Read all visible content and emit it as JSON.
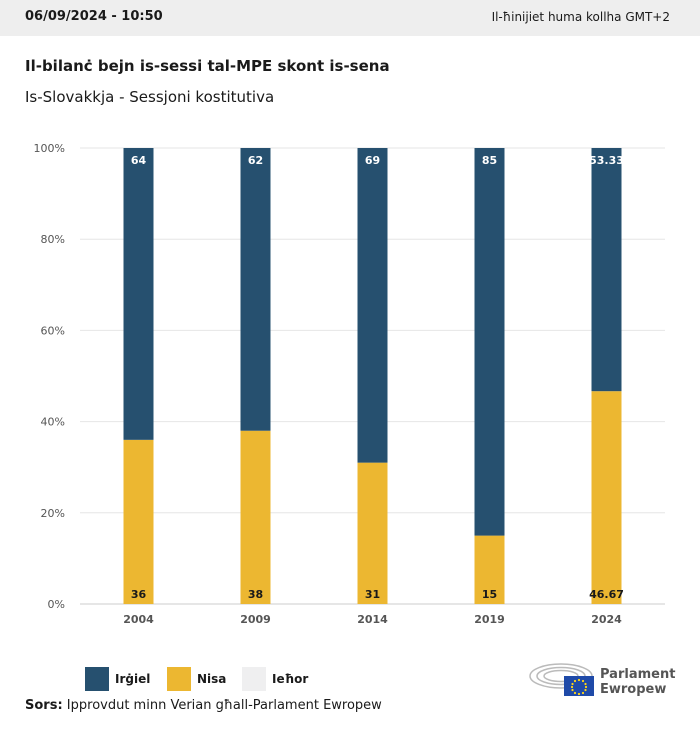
{
  "header": {
    "datetime": "06/09/2024 - 10:50",
    "timezone": "Il-ħinijiet huma kollha GMT+2"
  },
  "title": "Il-bilanċ bejn is-sessi tal-MPE skont is-sena",
  "subtitle": "Is-Slovakkja - Sessjoni kostitutiva",
  "chart_data": {
    "type": "bar",
    "stacked": true,
    "categories": [
      "2004",
      "2009",
      "2014",
      "2019",
      "2024"
    ],
    "series": [
      {
        "name": "Nisa",
        "values": [
          36,
          38,
          31,
          15,
          46.67
        ],
        "color": "#ecb731"
      },
      {
        "name": "Irġiel",
        "values": [
          64,
          62,
          69,
          85,
          53.33
        ],
        "color": "#26506f"
      },
      {
        "name": "Ieħor",
        "values": [
          0,
          0,
          0,
          0,
          0
        ],
        "color": "#efeff0"
      }
    ],
    "yticks": [
      "0%",
      "20%",
      "40%",
      "60%",
      "80%",
      "100%"
    ],
    "ylim": [
      0,
      100
    ],
    "grid": true,
    "legend_position": "bottom-left"
  },
  "legend": [
    {
      "label": "Irġiel",
      "color": "#26506f"
    },
    {
      "label": "Nisa",
      "color": "#ecb731"
    },
    {
      "label": "Ieħor",
      "color": "#efeff0"
    }
  ],
  "source": {
    "label": "Sors:",
    "text": "Ipprovdut minn Verian għall-Parlament Ewropew"
  },
  "logo": {
    "line1": "Parlament",
    "line2": "Ewropew"
  }
}
